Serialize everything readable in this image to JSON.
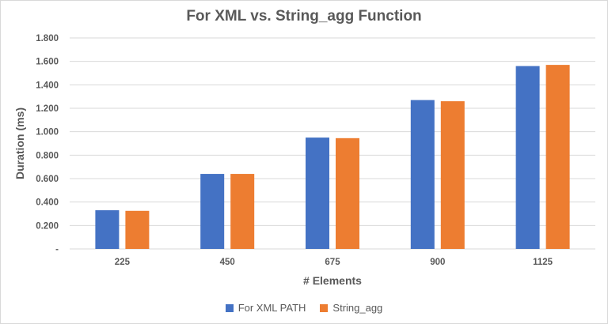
{
  "chart_data": {
    "type": "bar",
    "title": "For XML vs. String_agg Function",
    "xlabel": "# Elements",
    "ylabel": "Duration (ms)",
    "categories": [
      "225",
      "450",
      "675",
      "900",
      "1125"
    ],
    "series": [
      {
        "name": "For XML PATH",
        "color": "#4472C4",
        "values": [
          0.33,
          0.64,
          0.95,
          1.27,
          1.56
        ]
      },
      {
        "name": "String_agg",
        "color": "#ED7D31",
        "values": [
          0.325,
          0.64,
          0.945,
          1.26,
          1.57
        ]
      }
    ],
    "ylim": [
      0,
      1.8
    ],
    "yticks": [
      {
        "value": 0,
        "label": "-"
      },
      {
        "value": 0.2,
        "label": "0.200"
      },
      {
        "value": 0.4,
        "label": "0.400"
      },
      {
        "value": 0.6,
        "label": "0.600"
      },
      {
        "value": 0.8,
        "label": "0.800"
      },
      {
        "value": 1.0,
        "label": "1.000"
      },
      {
        "value": 1.2,
        "label": "1.200"
      },
      {
        "value": 1.4,
        "label": "1.400"
      },
      {
        "value": 1.6,
        "label": "1.600"
      },
      {
        "value": 1.8,
        "label": "1.800"
      }
    ],
    "grid": true,
    "legend_position": "bottom"
  }
}
